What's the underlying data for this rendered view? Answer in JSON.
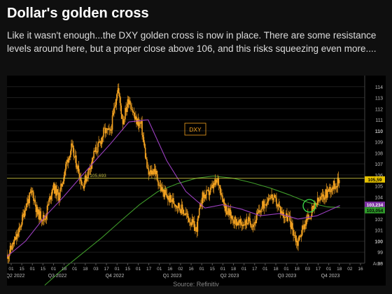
{
  "header": {
    "title": "Dollar's golden cross",
    "subtitle": "Like it wasn't enough...the DXY golden cross is now in place. There are some resistance levels around here, but a proper close above 106, and this risks squeezing even more...."
  },
  "source": "Source: Refinitiv",
  "colors": {
    "background": "#0f0f0f",
    "plot_background": "#000000",
    "price": "#f0a020",
    "ma_50": "#9b3fc0",
    "ma_200": "#3f9a2a",
    "resistance": "#c8c040",
    "circle": "#3ce04a",
    "last_price_tag": "#e6c200",
    "ma_50_tag": "#7a2fa0",
    "ma_200_tag": "#2f9a2a"
  },
  "chart_data": {
    "type": "line",
    "series_label": "DXY",
    "ylim": [
      98,
      115
    ],
    "y_ticks": [
      98,
      99,
      100,
      101,
      102,
      103,
      104,
      105,
      106,
      107,
      108,
      109,
      110,
      111,
      112,
      113,
      114
    ],
    "y_tick_labels": [
      "98",
      "99",
      "100",
      "101",
      "102",
      "103",
      "104",
      "105",
      "106",
      "107",
      "108",
      "109",
      "110",
      "111",
      "112",
      "113",
      "114"
    ],
    "axis_corner_label": "Auto",
    "x_day_labels": [
      "01",
      "15",
      "01",
      "15",
      "01",
      "18",
      "01",
      "18",
      "03",
      "17",
      "01",
      "15",
      "01",
      "17",
      "01",
      "16",
      "02",
      "16",
      "01",
      "15",
      "01",
      "18",
      "01",
      "17",
      "01",
      "18",
      "01",
      "18",
      "03",
      "17",
      "01",
      "18",
      "02",
      "16"
    ],
    "x_quarter_labels": [
      "Q2 2022",
      "Q3 2022",
      "Q4 2022",
      "Q1 2023",
      "Q2 2023",
      "Q3 2023",
      "Q4 2023"
    ],
    "resistance_level": {
      "value": 105.693,
      "label": "105,693"
    },
    "value_tags": [
      {
        "label": "105,59",
        "value": 105.59
      },
      {
        "label": "103,234",
        "value": 103.234
      },
      {
        "label": "103,054",
        "value": 103.054
      }
    ],
    "highlight": "golden cross (circled)",
    "series": [
      {
        "name": "DXY",
        "style": "candles",
        "x": [
          "2022-04-01",
          "2022-04-10",
          "2022-04-20",
          "2022-05-01",
          "2022-05-12",
          "2022-05-20",
          "2022-06-01",
          "2022-06-14",
          "2022-06-24",
          "2022-07-05",
          "2022-07-14",
          "2022-07-25",
          "2022-08-01",
          "2022-08-10",
          "2022-08-20",
          "2022-08-29",
          "2022-09-05",
          "2022-09-15",
          "2022-09-27",
          "2022-10-05",
          "2022-10-15",
          "2022-10-25",
          "2022-11-04",
          "2022-11-15",
          "2022-11-25",
          "2022-12-05",
          "2022-12-15",
          "2022-12-28",
          "2023-01-10",
          "2023-01-20",
          "2023-02-01",
          "2023-02-10",
          "2023-02-20",
          "2023-03-01",
          "2023-03-08",
          "2023-03-20",
          "2023-04-01",
          "2023-04-14",
          "2023-04-25",
          "2023-05-05",
          "2023-05-15",
          "2023-05-31",
          "2023-06-10",
          "2023-06-20",
          "2023-07-01",
          "2023-07-10",
          "2023-07-14",
          "2023-07-25",
          "2023-08-05",
          "2023-08-15",
          "2023-08-25",
          "2023-09-05",
          "2023-09-15",
          "2023-09-21"
        ],
        "values": [
          98.6,
          99.6,
          100.8,
          103.2,
          104.5,
          102.5,
          102.0,
          105.0,
          104.0,
          106.8,
          108.5,
          106.5,
          105.0,
          106.2,
          108.0,
          108.8,
          110.0,
          109.8,
          114.0,
          110.8,
          113.0,
          111.0,
          110.5,
          106.0,
          106.5,
          104.8,
          104.0,
          103.5,
          102.8,
          102.0,
          101.0,
          104.0,
          104.3,
          105.0,
          105.5,
          103.0,
          102.0,
          101.5,
          101.8,
          101.6,
          102.8,
          104.2,
          103.5,
          102.5,
          102.0,
          100.5,
          99.8,
          101.5,
          102.5,
          103.5,
          104.0,
          104.8,
          105.2,
          105.6
        ]
      },
      {
        "name": "50-day moving average",
        "style": "line",
        "x": [
          "2022-04-01",
          "2022-05-01",
          "2022-06-01",
          "2022-07-01",
          "2022-08-01",
          "2022-08-20",
          "2022-09-15",
          "2022-10-15",
          "2022-11-15",
          "2022-12-15",
          "2023-01-15",
          "2023-02-15",
          "2023-03-15",
          "2023-04-15",
          "2023-05-15",
          "2023-06-15",
          "2023-07-15",
          "2023-08-15",
          "2023-09-21"
        ],
        "values": [
          98.6,
          100.0,
          102.2,
          104.0,
          106.0,
          107.2,
          108.8,
          110.8,
          111.0,
          107.3,
          104.5,
          103.0,
          103.3,
          102.9,
          102.3,
          102.5,
          102.0,
          102.3,
          103.23
        ]
      },
      {
        "name": "200-day moving average",
        "style": "line",
        "x": [
          "2022-06-01",
          "2022-07-01",
          "2022-08-01",
          "2022-09-01",
          "2022-10-01",
          "2022-11-01",
          "2022-12-01",
          "2023-01-01",
          "2023-02-01",
          "2023-03-01",
          "2023-04-01",
          "2023-05-01",
          "2023-06-01",
          "2023-07-01",
          "2023-08-01",
          "2023-09-01",
          "2023-09-21"
        ],
        "values": [
          96.0,
          97.5,
          98.9,
          100.3,
          101.8,
          103.3,
          104.5,
          105.2,
          105.7,
          105.9,
          105.7,
          105.3,
          104.8,
          104.2,
          103.5,
          103.1,
          103.05
        ]
      }
    ]
  }
}
